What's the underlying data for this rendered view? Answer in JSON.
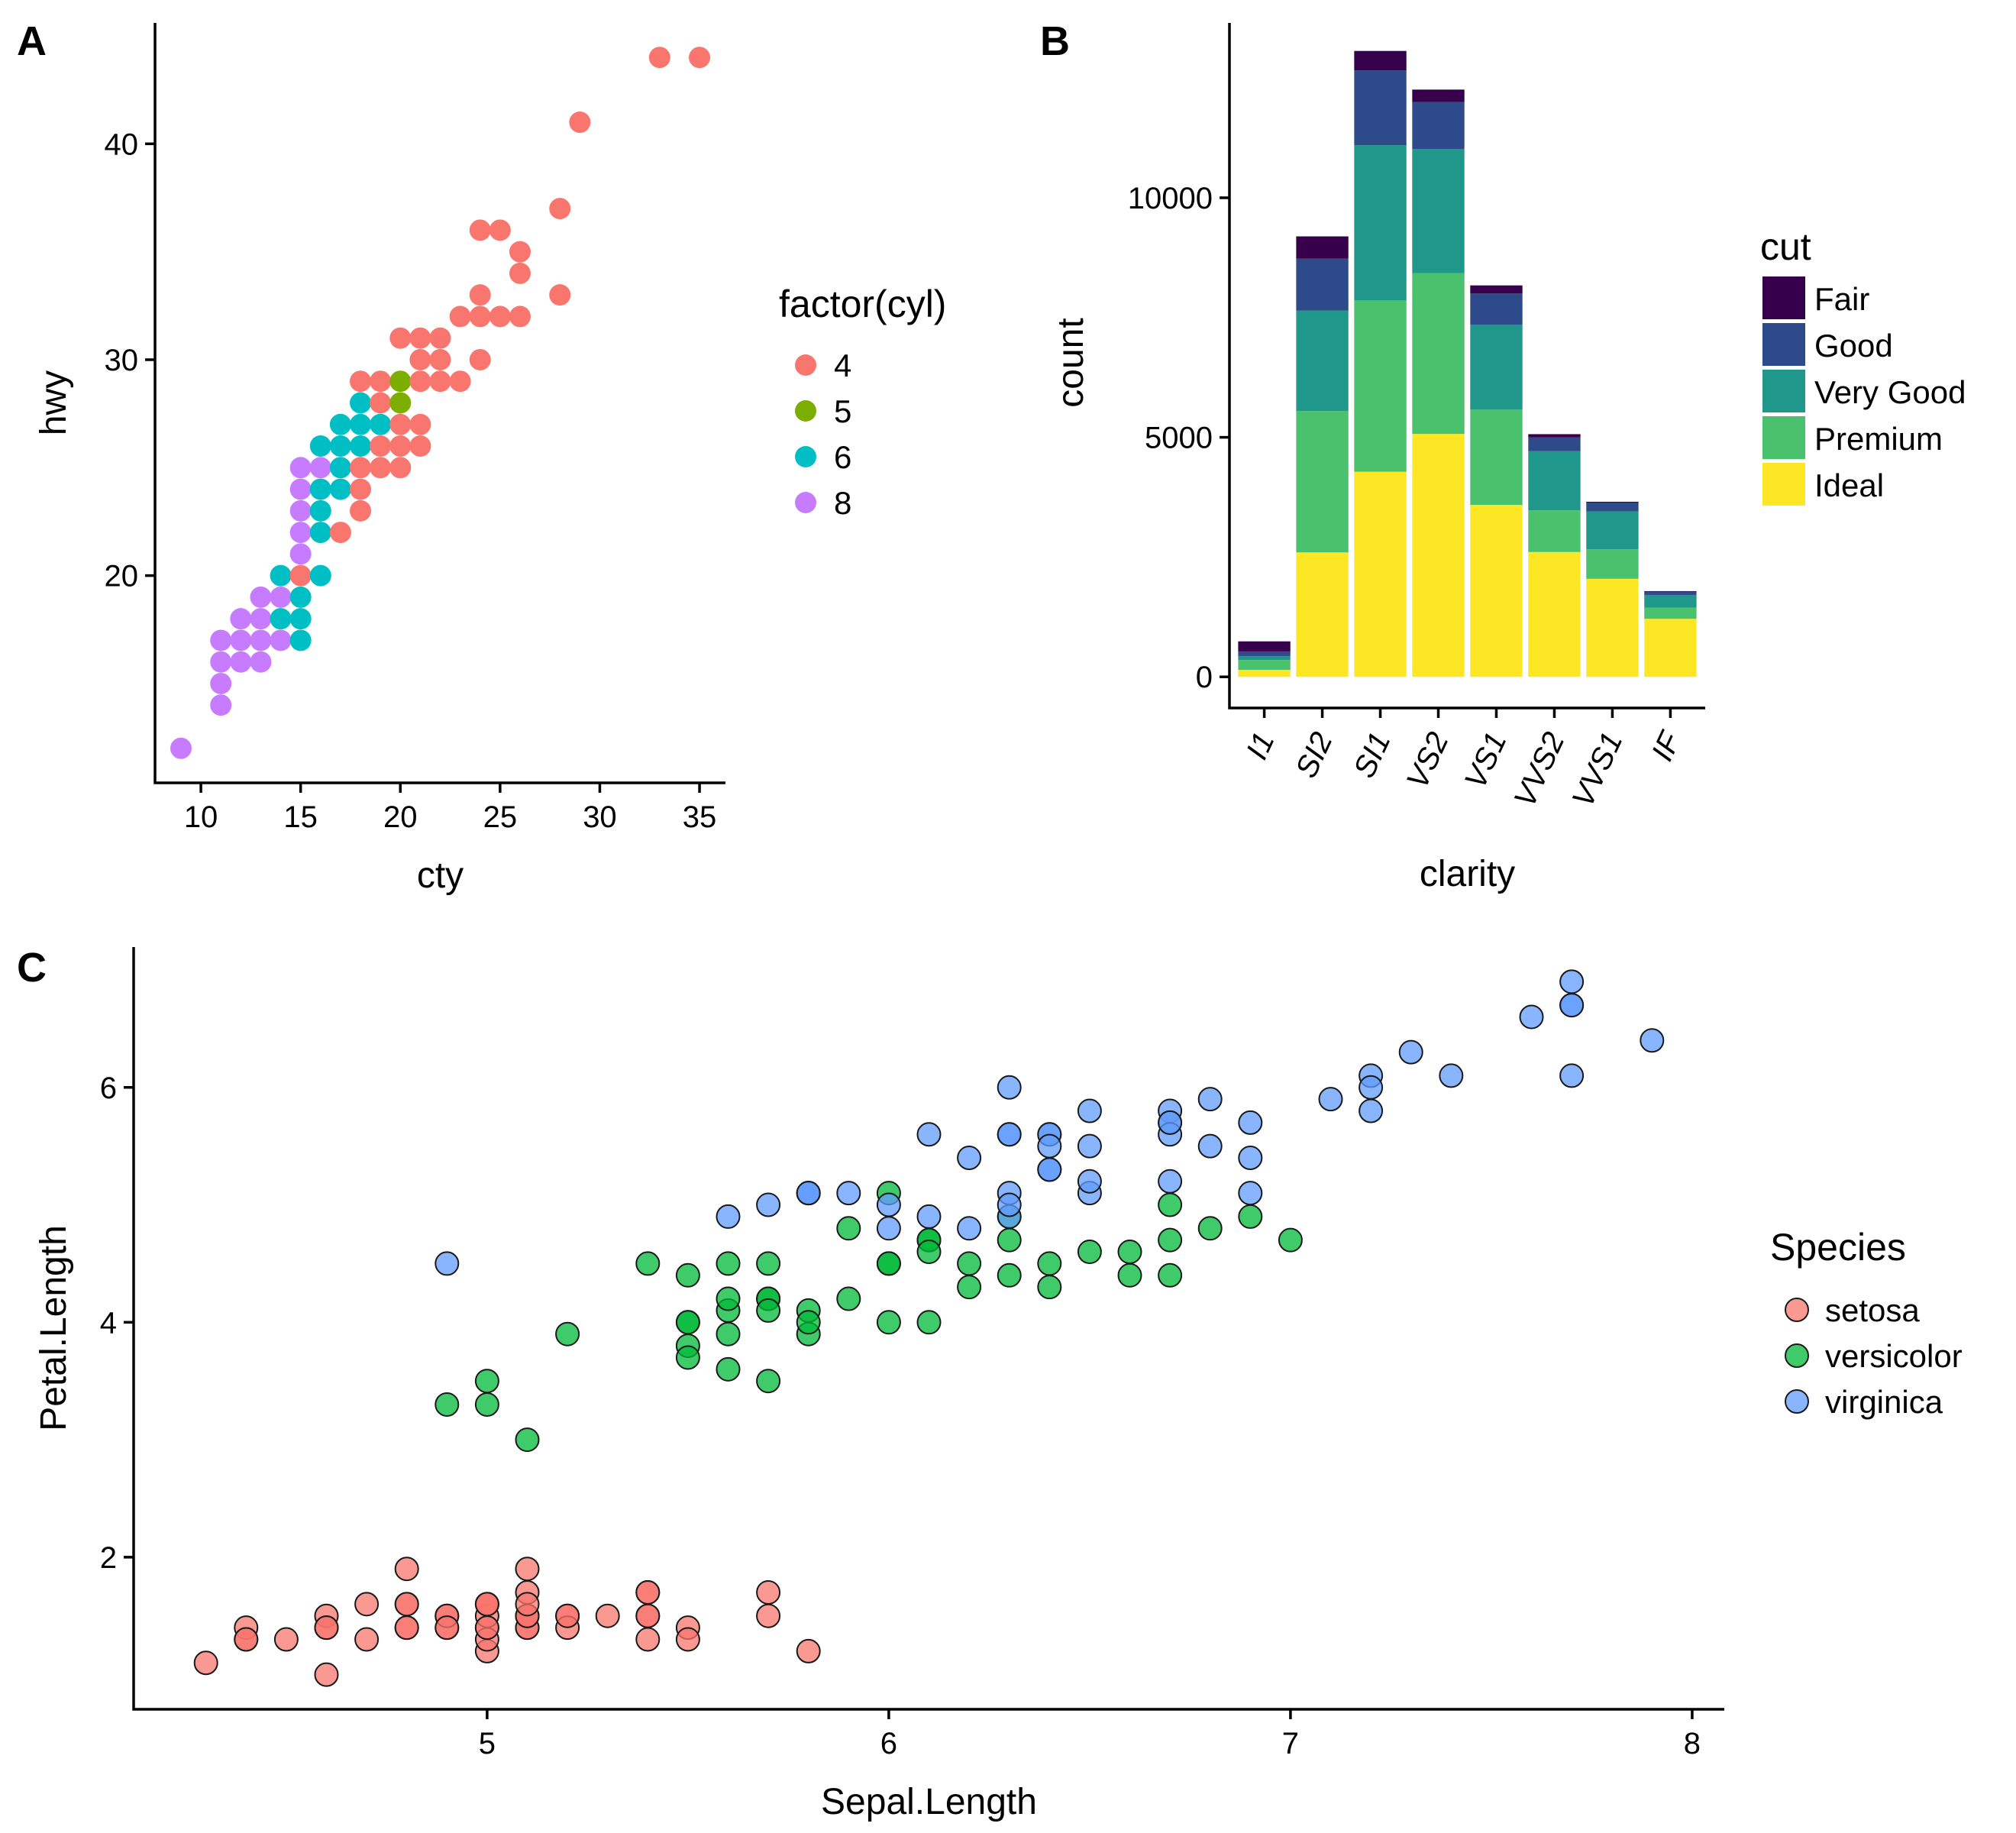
{
  "panel_labels": {
    "a": "A",
    "b": "B",
    "c": "C"
  },
  "chart_data": [
    {
      "id": "A",
      "type": "scatter",
      "xlabel": "cty",
      "ylabel": "hwy",
      "xlim": [
        7.7,
        36.3
      ],
      "ylim": [
        10.4,
        45.6
      ],
      "xticks": [
        10,
        15,
        20,
        25,
        30,
        35
      ],
      "yticks": [
        20,
        30,
        40
      ],
      "legend_title": "factor(cyl)",
      "legend_position": "right",
      "groups": [
        {
          "label": "4",
          "color": "#F8766D"
        },
        {
          "label": "5",
          "color": "#7CAE00"
        },
        {
          "label": "6",
          "color": "#00BFC4"
        },
        {
          "label": "8",
          "color": "#C77CFF"
        }
      ],
      "points": [
        [
          9,
          12,
          "8"
        ],
        [
          11,
          14,
          "8"
        ],
        [
          11,
          15,
          "8"
        ],
        [
          11,
          16,
          "8"
        ],
        [
          11,
          17,
          "8"
        ],
        [
          12,
          16,
          "8"
        ],
        [
          12,
          17,
          "8"
        ],
        [
          12,
          18,
          "8"
        ],
        [
          13,
          16,
          "8"
        ],
        [
          13,
          17,
          "8"
        ],
        [
          13,
          18,
          "8"
        ],
        [
          13,
          19,
          "8"
        ],
        [
          14,
          17,
          "8"
        ],
        [
          14,
          19,
          "8"
        ],
        [
          14,
          18,
          "6"
        ],
        [
          14,
          20,
          "6"
        ],
        [
          15,
          17,
          "6"
        ],
        [
          15,
          18,
          "6"
        ],
        [
          15,
          19,
          "6"
        ],
        [
          15,
          20,
          "4"
        ],
        [
          15,
          21,
          "8"
        ],
        [
          15,
          22,
          "8"
        ],
        [
          15,
          23,
          "8"
        ],
        [
          15,
          24,
          "8"
        ],
        [
          15,
          25,
          "8"
        ],
        [
          16,
          20,
          "6"
        ],
        [
          16,
          22,
          "6"
        ],
        [
          16,
          23,
          "6"
        ],
        [
          16,
          24,
          "6"
        ],
        [
          16,
          25,
          "8"
        ],
        [
          16,
          26,
          "6"
        ],
        [
          17,
          22,
          "4"
        ],
        [
          17,
          24,
          "6"
        ],
        [
          17,
          25,
          "6"
        ],
        [
          17,
          26,
          "6"
        ],
        [
          17,
          27,
          "6"
        ],
        [
          18,
          23,
          "4"
        ],
        [
          18,
          24,
          "4"
        ],
        [
          18,
          25,
          "4"
        ],
        [
          18,
          26,
          "6"
        ],
        [
          18,
          27,
          "6"
        ],
        [
          18,
          28,
          "6"
        ],
        [
          18,
          29,
          "4"
        ],
        [
          19,
          25,
          "4"
        ],
        [
          19,
          26,
          "4"
        ],
        [
          19,
          27,
          "6"
        ],
        [
          19,
          28,
          "4"
        ],
        [
          19,
          29,
          "4"
        ],
        [
          20,
          25,
          "4"
        ],
        [
          20,
          26,
          "4"
        ],
        [
          20,
          27,
          "4"
        ],
        [
          20,
          28,
          "5"
        ],
        [
          20,
          29,
          "5"
        ],
        [
          20,
          31,
          "4"
        ],
        [
          21,
          26,
          "4"
        ],
        [
          21,
          27,
          "4"
        ],
        [
          21,
          29,
          "4"
        ],
        [
          21,
          30,
          "4"
        ],
        [
          21,
          31,
          "4"
        ],
        [
          22,
          29,
          "4"
        ],
        [
          22,
          30,
          "4"
        ],
        [
          22,
          31,
          "4"
        ],
        [
          23,
          29,
          "4"
        ],
        [
          23,
          32,
          "4"
        ],
        [
          24,
          30,
          "4"
        ],
        [
          24,
          32,
          "4"
        ],
        [
          24,
          33,
          "4"
        ],
        [
          24,
          36,
          "4"
        ],
        [
          25,
          32,
          "4"
        ],
        [
          25,
          36,
          "4"
        ],
        [
          26,
          32,
          "4"
        ],
        [
          26,
          34,
          "4"
        ],
        [
          26,
          35,
          "4"
        ],
        [
          28,
          33,
          "4"
        ],
        [
          28,
          37,
          "4"
        ],
        [
          29,
          41,
          "4"
        ],
        [
          33,
          44,
          "4"
        ],
        [
          35,
          44,
          "4"
        ]
      ]
    },
    {
      "id": "B",
      "type": "bar",
      "stacked": true,
      "xlabel": "clarity",
      "ylabel": "count",
      "ylim": [
        -650,
        13650
      ],
      "yticks": [
        0,
        5000,
        10000
      ],
      "categories": [
        "I1",
        "SI2",
        "SI1",
        "VS2",
        "VS1",
        "VVS2",
        "VVS1",
        "IF"
      ],
      "legend_title": "cut",
      "legend_position": "right",
      "series": [
        {
          "name": "Ideal",
          "color": "#FDE725",
          "values": [
            146,
            2598,
            4282,
            5071,
            3589,
            2606,
            2047,
            1212
          ]
        },
        {
          "name": "Premium",
          "color": "#4AC16D",
          "values": [
            205,
            2949,
            3575,
            3357,
            1989,
            870,
            616,
            230
          ]
        },
        {
          "name": "Very Good",
          "color": "#1F988B",
          "values": [
            84,
            2100,
            3240,
            2591,
            1775,
            1235,
            789,
            268
          ]
        },
        {
          "name": "Good",
          "color": "#2D4A8A",
          "values": [
            96,
            1081,
            1560,
            978,
            648,
            286,
            186,
            71
          ]
        },
        {
          "name": "Fair",
          "color": "#37004C",
          "values": [
            210,
            466,
            408,
            261,
            170,
            69,
            17,
            9
          ]
        }
      ],
      "legend_order": [
        "Fair",
        "Good",
        "Very Good",
        "Premium",
        "Ideal"
      ]
    },
    {
      "id": "C",
      "type": "scatter",
      "xlabel": "Sepal.Length",
      "ylabel": "Petal.Length",
      "xlim": [
        4.12,
        8.08
      ],
      "ylim": [
        0.705,
        7.195
      ],
      "xticks": [
        5,
        6,
        7,
        8
      ],
      "yticks": [
        2,
        4,
        6
      ],
      "legend_title": "Species",
      "legend_position": "right",
      "groups": [
        {
          "label": "setosa",
          "color": "#F8766D"
        },
        {
          "label": "versicolor",
          "color": "#00BA38"
        },
        {
          "label": "virginica",
          "color": "#619CFF"
        }
      ],
      "points": [
        [
          5.1,
          1.4,
          "setosa"
        ],
        [
          4.9,
          1.4,
          "setosa"
        ],
        [
          4.7,
          1.3,
          "setosa"
        ],
        [
          4.6,
          1.5,
          "setosa"
        ],
        [
          5.0,
          1.4,
          "setosa"
        ],
        [
          5.4,
          1.7,
          "setosa"
        ],
        [
          4.6,
          1.4,
          "setosa"
        ],
        [
          5.0,
          1.5,
          "setosa"
        ],
        [
          4.4,
          1.4,
          "setosa"
        ],
        [
          4.9,
          1.5,
          "setosa"
        ],
        [
          5.4,
          1.5,
          "setosa"
        ],
        [
          4.8,
          1.6,
          "setosa"
        ],
        [
          4.8,
          1.4,
          "setosa"
        ],
        [
          4.3,
          1.1,
          "setosa"
        ],
        [
          5.8,
          1.2,
          "setosa"
        ],
        [
          5.7,
          1.5,
          "setosa"
        ],
        [
          5.4,
          1.3,
          "setosa"
        ],
        [
          5.1,
          1.4,
          "setosa"
        ],
        [
          5.7,
          1.7,
          "setosa"
        ],
        [
          5.1,
          1.5,
          "setosa"
        ],
        [
          5.4,
          1.7,
          "setosa"
        ],
        [
          5.1,
          1.5,
          "setosa"
        ],
        [
          4.6,
          1.0,
          "setosa"
        ],
        [
          5.1,
          1.7,
          "setosa"
        ],
        [
          4.8,
          1.9,
          "setosa"
        ],
        [
          5.0,
          1.6,
          "setosa"
        ],
        [
          5.0,
          1.6,
          "setosa"
        ],
        [
          5.2,
          1.5,
          "setosa"
        ],
        [
          5.2,
          1.4,
          "setosa"
        ],
        [
          4.7,
          1.6,
          "setosa"
        ],
        [
          4.8,
          1.6,
          "setosa"
        ],
        [
          5.4,
          1.5,
          "setosa"
        ],
        [
          5.2,
          1.5,
          "setosa"
        ],
        [
          5.5,
          1.4,
          "setosa"
        ],
        [
          4.9,
          1.5,
          "setosa"
        ],
        [
          5.0,
          1.2,
          "setosa"
        ],
        [
          5.5,
          1.3,
          "setosa"
        ],
        [
          4.9,
          1.4,
          "setosa"
        ],
        [
          4.4,
          1.3,
          "setosa"
        ],
        [
          5.1,
          1.5,
          "setosa"
        ],
        [
          5.0,
          1.3,
          "setosa"
        ],
        [
          4.5,
          1.3,
          "setosa"
        ],
        [
          4.4,
          1.3,
          "setosa"
        ],
        [
          5.0,
          1.6,
          "setosa"
        ],
        [
          5.1,
          1.9,
          "setosa"
        ],
        [
          4.8,
          1.4,
          "setosa"
        ],
        [
          5.1,
          1.6,
          "setosa"
        ],
        [
          4.6,
          1.4,
          "setosa"
        ],
        [
          5.3,
          1.5,
          "setosa"
        ],
        [
          5.0,
          1.4,
          "setosa"
        ],
        [
          7.0,
          4.7,
          "versicolor"
        ],
        [
          6.4,
          4.5,
          "versicolor"
        ],
        [
          6.9,
          4.9,
          "versicolor"
        ],
        [
          5.5,
          4.0,
          "versicolor"
        ],
        [
          6.5,
          4.6,
          "versicolor"
        ],
        [
          5.7,
          4.5,
          "versicolor"
        ],
        [
          6.3,
          4.7,
          "versicolor"
        ],
        [
          4.9,
          3.3,
          "versicolor"
        ],
        [
          6.6,
          4.6,
          "versicolor"
        ],
        [
          5.2,
          3.9,
          "versicolor"
        ],
        [
          5.0,
          3.5,
          "versicolor"
        ],
        [
          5.9,
          4.2,
          "versicolor"
        ],
        [
          6.0,
          4.0,
          "versicolor"
        ],
        [
          6.1,
          4.7,
          "versicolor"
        ],
        [
          5.6,
          3.6,
          "versicolor"
        ],
        [
          6.7,
          4.4,
          "versicolor"
        ],
        [
          5.6,
          4.5,
          "versicolor"
        ],
        [
          5.8,
          4.1,
          "versicolor"
        ],
        [
          6.2,
          4.5,
          "versicolor"
        ],
        [
          5.6,
          3.9,
          "versicolor"
        ],
        [
          5.9,
          4.8,
          "versicolor"
        ],
        [
          6.1,
          4.0,
          "versicolor"
        ],
        [
          6.3,
          4.9,
          "versicolor"
        ],
        [
          6.1,
          4.7,
          "versicolor"
        ],
        [
          6.4,
          4.3,
          "versicolor"
        ],
        [
          6.6,
          4.4,
          "versicolor"
        ],
        [
          6.8,
          4.8,
          "versicolor"
        ],
        [
          6.7,
          5.0,
          "versicolor"
        ],
        [
          6.0,
          4.5,
          "versicolor"
        ],
        [
          5.7,
          3.5,
          "versicolor"
        ],
        [
          5.5,
          3.8,
          "versicolor"
        ],
        [
          5.5,
          3.7,
          "versicolor"
        ],
        [
          5.8,
          3.9,
          "versicolor"
        ],
        [
          6.0,
          5.1,
          "versicolor"
        ],
        [
          5.4,
          4.5,
          "versicolor"
        ],
        [
          6.0,
          4.5,
          "versicolor"
        ],
        [
          6.7,
          4.7,
          "versicolor"
        ],
        [
          6.3,
          4.4,
          "versicolor"
        ],
        [
          5.6,
          4.1,
          "versicolor"
        ],
        [
          5.5,
          4.0,
          "versicolor"
        ],
        [
          5.5,
          4.4,
          "versicolor"
        ],
        [
          6.1,
          4.6,
          "versicolor"
        ],
        [
          5.8,
          4.0,
          "versicolor"
        ],
        [
          5.0,
          3.3,
          "versicolor"
        ],
        [
          5.6,
          4.2,
          "versicolor"
        ],
        [
          5.7,
          4.2,
          "versicolor"
        ],
        [
          5.7,
          4.2,
          "versicolor"
        ],
        [
          6.2,
          4.3,
          "versicolor"
        ],
        [
          5.1,
          3.0,
          "versicolor"
        ],
        [
          5.7,
          4.1,
          "versicolor"
        ],
        [
          6.3,
          6.0,
          "virginica"
        ],
        [
          5.8,
          5.1,
          "virginica"
        ],
        [
          7.1,
          5.9,
          "virginica"
        ],
        [
          6.3,
          5.6,
          "virginica"
        ],
        [
          6.5,
          5.8,
          "virginica"
        ],
        [
          7.6,
          6.6,
          "virginica"
        ],
        [
          4.9,
          4.5,
          "virginica"
        ],
        [
          7.3,
          6.3,
          "virginica"
        ],
        [
          6.7,
          5.8,
          "virginica"
        ],
        [
          7.2,
          6.1,
          "virginica"
        ],
        [
          6.5,
          5.1,
          "virginica"
        ],
        [
          6.4,
          5.3,
          "virginica"
        ],
        [
          6.8,
          5.5,
          "virginica"
        ],
        [
          5.7,
          5.0,
          "virginica"
        ],
        [
          5.8,
          5.1,
          "virginica"
        ],
        [
          6.4,
          5.3,
          "virginica"
        ],
        [
          6.5,
          5.5,
          "virginica"
        ],
        [
          7.7,
          6.7,
          "virginica"
        ],
        [
          7.7,
          6.9,
          "virginica"
        ],
        [
          6.0,
          5.0,
          "virginica"
        ],
        [
          6.9,
          5.7,
          "virginica"
        ],
        [
          5.6,
          4.9,
          "virginica"
        ],
        [
          7.7,
          6.7,
          "virginica"
        ],
        [
          6.3,
          4.9,
          "virginica"
        ],
        [
          6.7,
          5.7,
          "virginica"
        ],
        [
          7.2,
          6.0,
          "virginica"
        ],
        [
          6.2,
          4.8,
          "virginica"
        ],
        [
          6.1,
          4.9,
          "virginica"
        ],
        [
          6.4,
          5.6,
          "virginica"
        ],
        [
          7.2,
          5.8,
          "virginica"
        ],
        [
          7.4,
          6.1,
          "virginica"
        ],
        [
          7.9,
          6.4,
          "virginica"
        ],
        [
          6.4,
          5.6,
          "virginica"
        ],
        [
          6.3,
          5.1,
          "virginica"
        ],
        [
          6.1,
          5.6,
          "virginica"
        ],
        [
          7.7,
          6.1,
          "virginica"
        ],
        [
          6.3,
          5.6,
          "virginica"
        ],
        [
          6.4,
          5.5,
          "virginica"
        ],
        [
          6.0,
          4.8,
          "virginica"
        ],
        [
          6.9,
          5.4,
          "virginica"
        ],
        [
          6.7,
          5.6,
          "virginica"
        ],
        [
          6.9,
          5.1,
          "virginica"
        ],
        [
          5.8,
          5.1,
          "virginica"
        ],
        [
          6.8,
          5.9,
          "virginica"
        ],
        [
          6.7,
          5.7,
          "virginica"
        ],
        [
          6.7,
          5.2,
          "virginica"
        ],
        [
          6.3,
          5.0,
          "virginica"
        ],
        [
          6.5,
          5.2,
          "virginica"
        ],
        [
          6.2,
          5.4,
          "virginica"
        ],
        [
          5.9,
          5.1,
          "virginica"
        ]
      ]
    }
  ]
}
